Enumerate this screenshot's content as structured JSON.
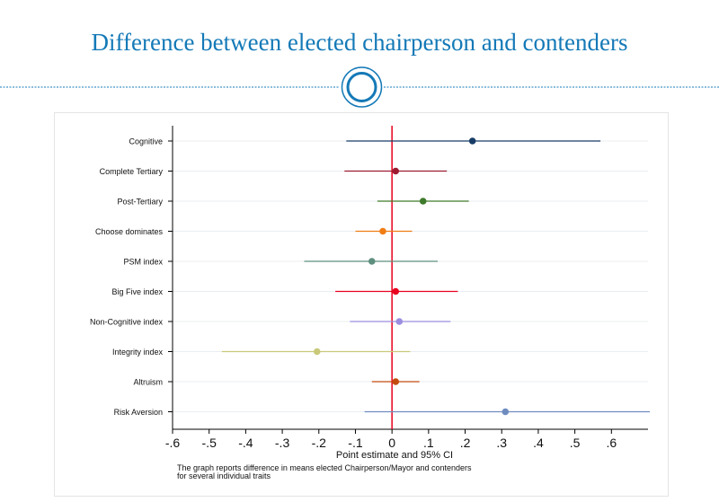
{
  "slide": {
    "title": "Difference between elected chairperson and contenders",
    "accent_color": "#1479b7"
  },
  "chart_data": {
    "type": "scatter",
    "title": "",
    "xlabel": "Point estimate and 95% CI",
    "ylabel": "",
    "xlim": [
      -0.6,
      0.7
    ],
    "xticks": [
      -0.6,
      -0.5,
      -0.4,
      -0.3,
      -0.2,
      -0.1,
      0,
      0.1,
      0.2,
      0.3,
      0.4,
      0.5,
      0.6
    ],
    "xtick_labels": [
      "-.6",
      "-.5",
      "-.4",
      "-.3",
      "-.2",
      "-.1",
      "0",
      ".1",
      ".2",
      ".3",
      ".4",
      ".5",
      ".6"
    ],
    "reference_line": {
      "x": 0,
      "color": "#e8001e"
    },
    "grid": true,
    "note": "The graph reports difference in means elected Chairperson/Mayor and contenders\nfor several individual traits",
    "series": [
      {
        "label": "Cognitive",
        "estimate": 0.22,
        "ci_low": -0.125,
        "ci_high": 0.57,
        "color": "#173c66"
      },
      {
        "label": "Complete Tertiary",
        "estimate": 0.01,
        "ci_low": -0.13,
        "ci_high": 0.15,
        "color": "#9c1b30"
      },
      {
        "label": "Post-Tertiary",
        "estimate": 0.085,
        "ci_low": -0.04,
        "ci_high": 0.21,
        "color": "#3d7a2b"
      },
      {
        "label": "Choose dominates",
        "estimate": -0.025,
        "ci_low": -0.1,
        "ci_high": 0.055,
        "color": "#f07d15"
      },
      {
        "label": "PSM index",
        "estimate": -0.055,
        "ci_low": -0.24,
        "ci_high": 0.125,
        "color": "#5e8f7e"
      },
      {
        "label": "Big Five index",
        "estimate": 0.01,
        "ci_low": -0.155,
        "ci_high": 0.18,
        "color": "#e8001e"
      },
      {
        "label": "Non-Cognitive index",
        "estimate": 0.02,
        "ci_low": -0.115,
        "ci_high": 0.16,
        "color": "#9a8ee0"
      },
      {
        "label": "Integrity index",
        "estimate": -0.205,
        "ci_low": -0.465,
        "ci_high": 0.05,
        "color": "#c9c97a"
      },
      {
        "label": "Altruism",
        "estimate": 0.01,
        "ci_low": -0.055,
        "ci_high": 0.075,
        "color": "#c24a0e"
      },
      {
        "label": "Risk Aversion",
        "estimate": 0.31,
        "ci_low": -0.075,
        "ci_high": 0.705,
        "color": "#6f8cbf"
      }
    ]
  }
}
